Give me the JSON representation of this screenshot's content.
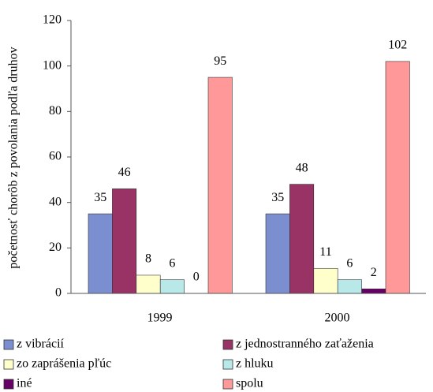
{
  "chart_data": {
    "type": "bar",
    "y_label": "početnosť chorôb z povolania podľa druhov",
    "categories": [
      "1999",
      "2000"
    ],
    "series": [
      {
        "name": "z vibrácií",
        "color": "#7b8fd0",
        "values": [
          35,
          35
        ]
      },
      {
        "name": "z jednostranného zaťaženia",
        "color": "#993366",
        "values": [
          46,
          48
        ]
      },
      {
        "name": "zo zaprášenia pľúc",
        "color": "#ffffcc",
        "values": [
          8,
          11
        ]
      },
      {
        "name": "z hluku",
        "color": "#b8e8e8",
        "values": [
          6,
          6
        ]
      },
      {
        "name": "iné",
        "color": "#660066",
        "values": [
          0,
          2
        ]
      },
      {
        "name": "spolu",
        "color": "#ff9999",
        "values": [
          95,
          102
        ]
      }
    ],
    "ylim": [
      0,
      120
    ],
    "yticks": [
      0,
      20,
      40,
      60,
      80,
      100,
      120
    ],
    "grid": false
  }
}
